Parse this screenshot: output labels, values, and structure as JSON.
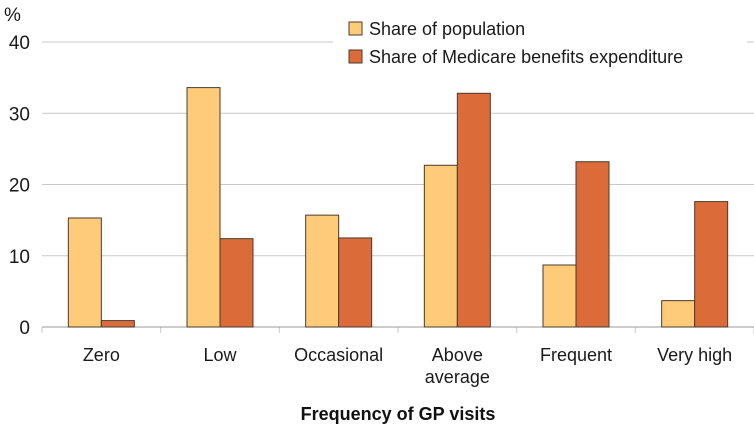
{
  "chart_data": {
    "type": "bar",
    "ylabel": "%",
    "xlabel": "Frequency of GP visits",
    "ylim": [
      0,
      40
    ],
    "yticks": [
      "0",
      "10",
      "20",
      "30",
      "40"
    ],
    "categories": [
      [
        "Zero"
      ],
      [
        "Low"
      ],
      [
        "Occasional"
      ],
      [
        "Above",
        "average"
      ],
      [
        "Frequent"
      ],
      [
        "Very high"
      ]
    ],
    "series": [
      {
        "name": "Share of population",
        "color": "#FECB78",
        "values": [
          15.3,
          33.6,
          15.7,
          22.7,
          8.7,
          3.7
        ]
      },
      {
        "name": "Share of Medicare benefits expenditure",
        "color": "#DC6B3A",
        "values": [
          0.9,
          12.4,
          12.5,
          32.8,
          23.2,
          17.6
        ]
      }
    ],
    "grid": true,
    "legend_position": "top-right",
    "grid_color": "#C9C9C9",
    "bar_outline": "#4a3b2e"
  }
}
